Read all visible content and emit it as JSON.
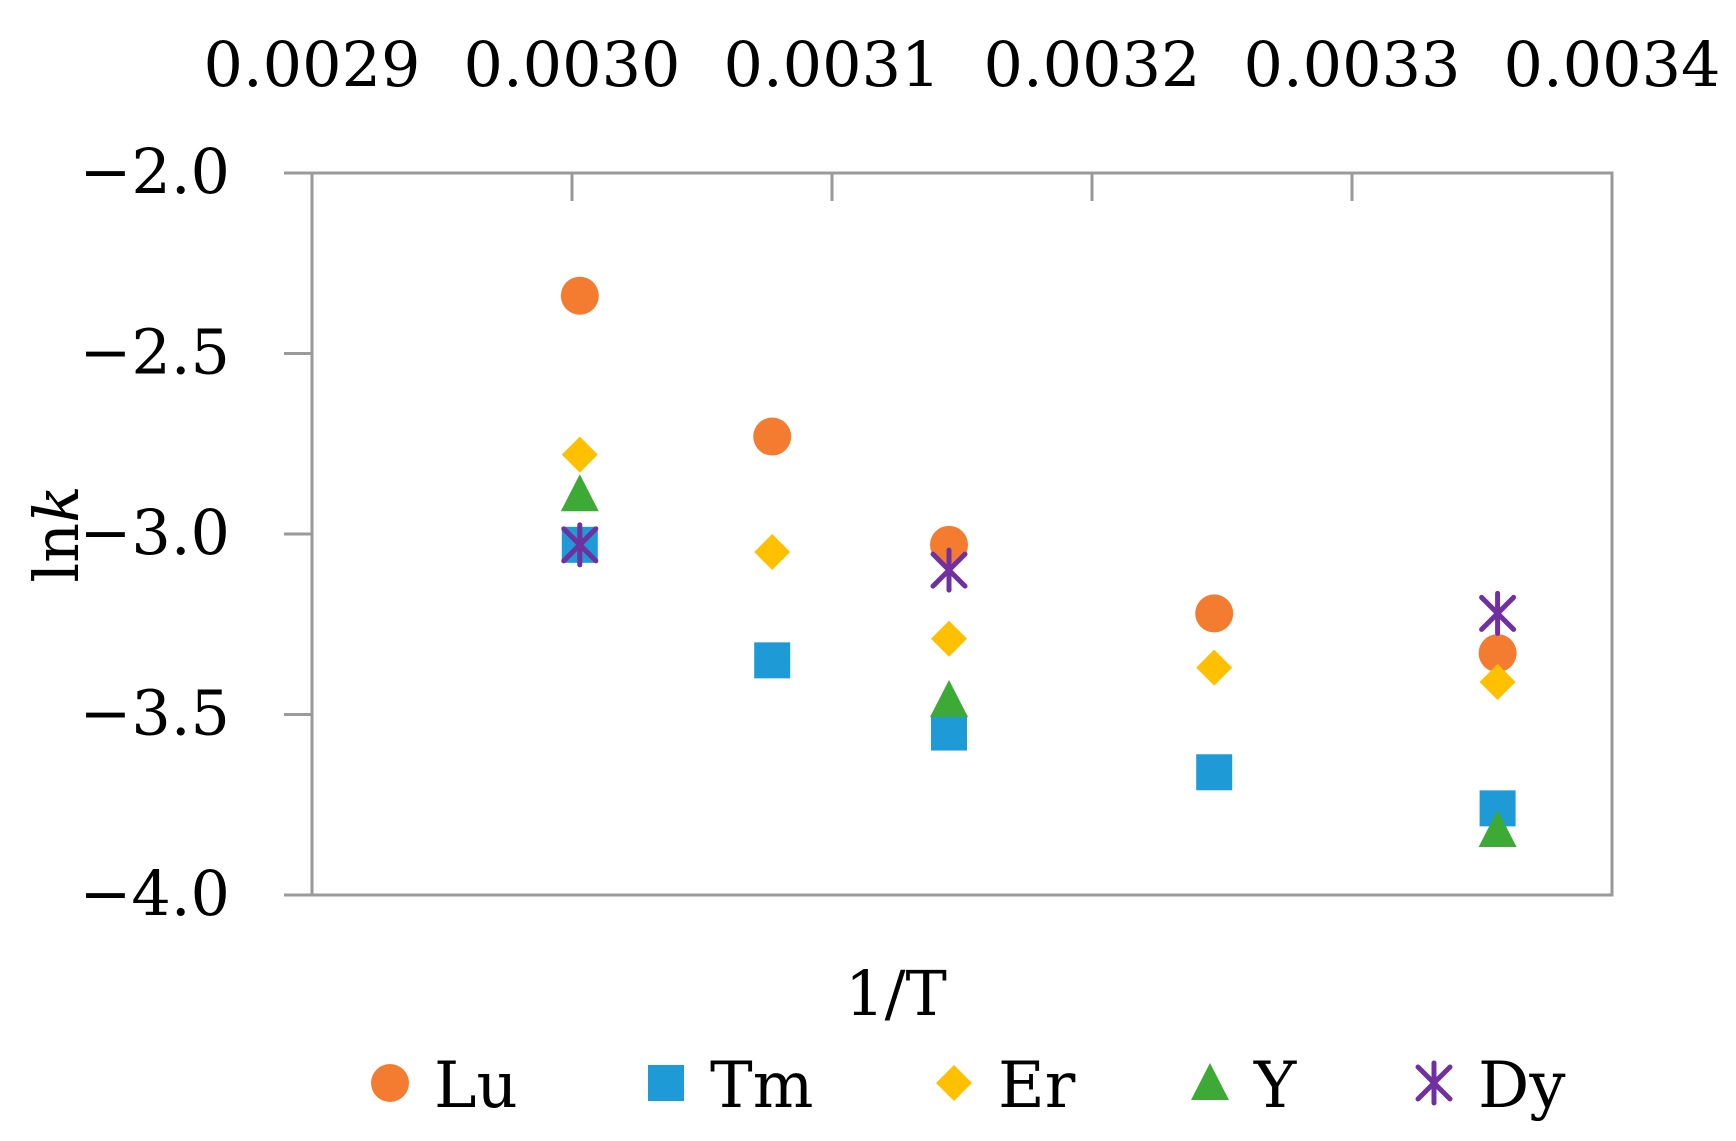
{
  "chart_data": {
    "type": "scatter",
    "title": "",
    "xlabel": "1/T",
    "ylabel_main": "ln",
    "ylabel_italic": "k",
    "xlim": [
      0.0029,
      0.0034
    ],
    "ylim": [
      -4.0,
      -2.0
    ],
    "x_ticks": [
      "0.0029",
      "0.0030",
      "0.0031",
      "0.0032",
      "0.0033",
      "0.0034"
    ],
    "y_ticks": [
      "−2.0",
      "−2.5",
      "−3.0",
      "−3.5",
      "−4.0"
    ],
    "x_axis_position": "top",
    "grid": false,
    "legend_position": "bottom",
    "series": [
      {
        "name": "Lu",
        "marker": "circle",
        "color": "#F47C30",
        "x": [
          0.003003,
          0.003077,
          0.003145,
          0.003247,
          0.003356
        ],
        "y": [
          -2.34,
          -2.73,
          -3.03,
          -3.22,
          -3.33
        ]
      },
      {
        "name": "Tm",
        "marker": "square",
        "color": "#1E9AD6",
        "x": [
          0.003003,
          0.003077,
          0.003145,
          0.003247,
          0.003356
        ],
        "y": [
          -3.03,
          -3.35,
          -3.55,
          -3.66,
          -3.76
        ]
      },
      {
        "name": "Er",
        "marker": "diamond",
        "color": "#FFC000",
        "x": [
          0.003003,
          0.003077,
          0.003145,
          0.003247,
          0.003356
        ],
        "y": [
          -2.78,
          -3.05,
          -3.29,
          -3.37,
          -3.41
        ]
      },
      {
        "name": "Y",
        "marker": "triangle",
        "color": "#3DAA35",
        "x": [
          0.003003,
          0.003145,
          0.003356
        ],
        "y": [
          -2.89,
          -3.46,
          -3.82
        ]
      },
      {
        "name": "Dy",
        "marker": "star",
        "color": "#7030A0",
        "x": [
          0.003003,
          0.003145,
          0.003356
        ],
        "y": [
          -3.03,
          -3.1,
          -3.22
        ]
      }
    ]
  }
}
